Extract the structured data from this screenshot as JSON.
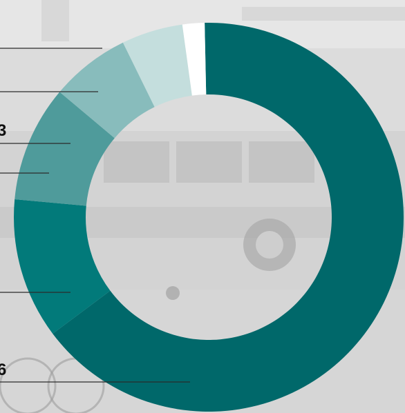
{
  "colors": {
    "background": "#d9d9d9",
    "leader_line": "#2b2b2b",
    "label_text": "#111111"
  },
  "chart_data": {
    "type": "pie",
    "variant": "donut",
    "title": "",
    "legend": "none",
    "slices": [
      {
        "value": 64.0,
        "color": "#00686a"
      },
      {
        "value": 11.5,
        "color": "#027a7a"
      },
      {
        "value": 9.5,
        "color": "#4f9b9b"
      },
      {
        "value": 6.5,
        "color": "#88bcbc"
      },
      {
        "value": 5.0,
        "color": "#c4dedd"
      },
      {
        "value": 1.8,
        "color": "#ffffff"
      }
    ],
    "visible_label_fragments": [
      "3",
      "6"
    ]
  }
}
